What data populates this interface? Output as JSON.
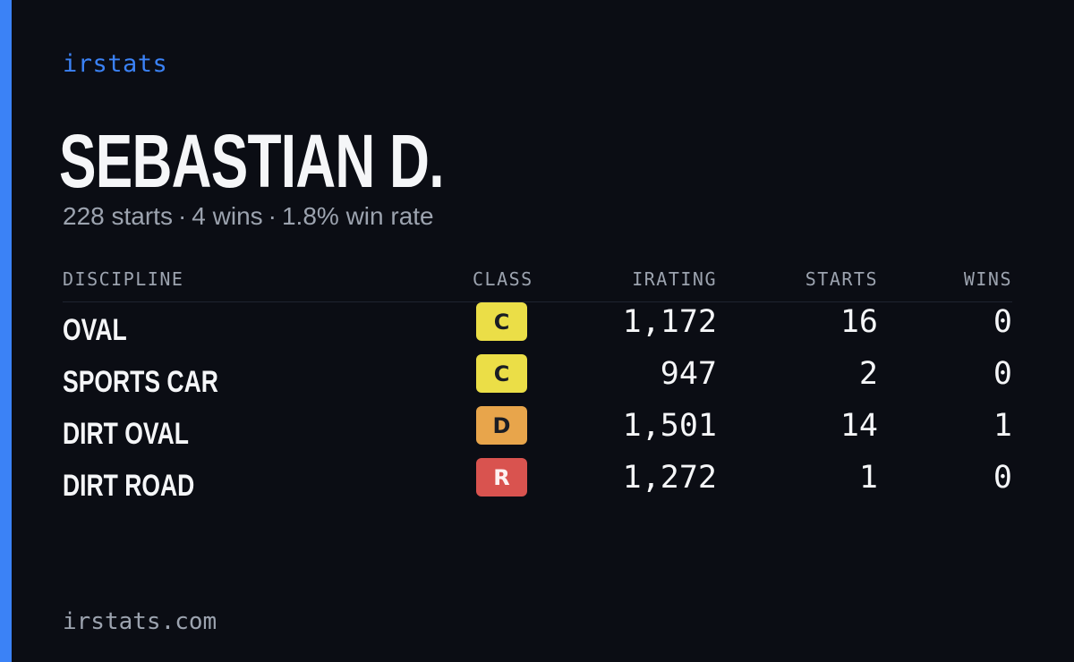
{
  "brand": "irstats",
  "driver": {
    "name": "SEBASTIAN D.",
    "starts": "228 starts",
    "wins": "4 wins",
    "win_rate": "1.8% win rate",
    "separator": "·"
  },
  "table": {
    "headers": {
      "discipline": "DISCIPLINE",
      "class": "CLASS",
      "irating": "IRATING",
      "starts": "STARTS",
      "wins": "WINS"
    },
    "rows": [
      {
        "discipline": "OVAL",
        "class": "C",
        "irating": "1,172",
        "starts": "16",
        "wins": "0"
      },
      {
        "discipline": "SPORTS CAR",
        "class": "C",
        "irating": "947",
        "starts": "2",
        "wins": "0"
      },
      {
        "discipline": "DIRT OVAL",
        "class": "D",
        "irating": "1,501",
        "starts": "14",
        "wins": "1"
      },
      {
        "discipline": "DIRT ROAD",
        "class": "R",
        "irating": "1,272",
        "starts": "1",
        "wins": "0"
      }
    ]
  },
  "colors": {
    "background": "#0b0d14",
    "accent": "#3b82f6",
    "class_c": "#ebde47",
    "class_d": "#e8a54b",
    "class_r": "#d9534f"
  },
  "footer": {
    "url": "irstats.com"
  }
}
